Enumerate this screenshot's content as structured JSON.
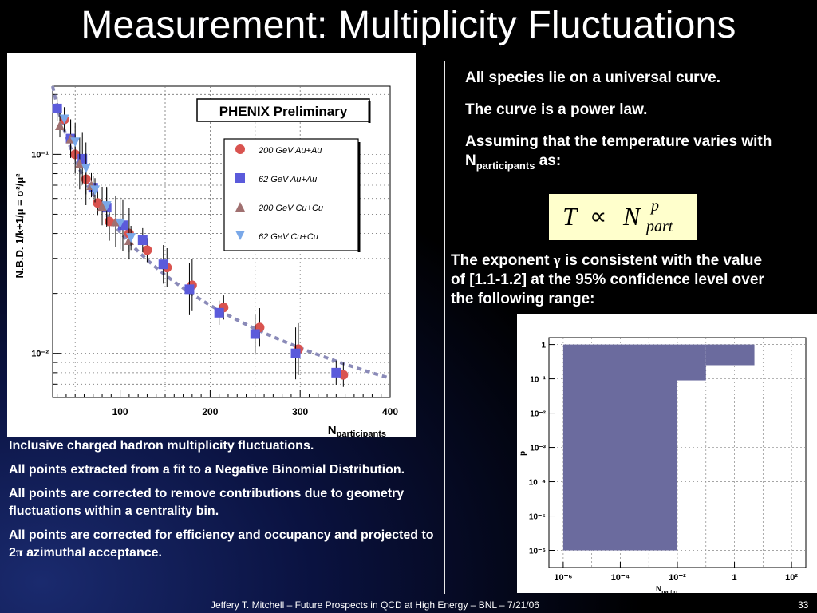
{
  "slide": {
    "title": "Measurement: Multiplicity Fluctuations",
    "right_points": [
      "All species lie on a universal curve.",
      "The curve is a power law.",
      "Assuming that the temperature varies with N",
      "participants",
      " as:"
    ],
    "exponent_text": [
      "The exponent ",
      "γ",
      " is consistent with the value of [1.1-1.2] at the 95% confidence level over the following range:"
    ],
    "left_points": [
      "Inclusive charged hadron multiplicity fluctuations.",
      "All points extracted from a fit to a Negative Binomial Distribution.",
      "All points are corrected to remove contributions due to geometry fluctuations within a centrality bin.",
      "All points are corrected for efficiency and occupancy and projected to 2",
      "π",
      " azimuthal acceptance."
    ],
    "formula": {
      "T": "T",
      "prop": "∝",
      "N": "N",
      "sup": "p",
      "sub": "part"
    },
    "footer": {
      "text": "Jeffery T. Mitchell – Future Prospects in QCD at High Energy – BNL – 7/21/06",
      "page": "33"
    }
  },
  "chart_data": [
    {
      "type": "scatter",
      "title": "PHENIX Preliminary",
      "ylabel": "N.B.D. 1/k+1/μ = σ²/μ²",
      "xlabel": "N",
      "xlabel_sub": "participants",
      "xlim": [
        25,
        400
      ],
      "ylim": [
        0.006,
        0.22
      ],
      "yscale": "log",
      "xticks": [
        "100",
        "200",
        "300",
        "400"
      ],
      "yticks": [
        "10⁻¹",
        "10⁻²"
      ],
      "grid": true,
      "legend_placement": "right",
      "series": [
        {
          "name": "200 GeV Au+Au",
          "color": "#d9534f",
          "marker": "circle",
          "x": [
            38,
            50,
            62,
            75,
            88,
            110,
            130,
            152,
            180,
            215,
            255,
            298,
            348
          ],
          "y": [
            0.15,
            0.1,
            0.075,
            0.057,
            0.046,
            0.04,
            0.033,
            0.027,
            0.022,
            0.017,
            0.0135,
            0.0105,
            0.0078
          ]
        },
        {
          "name": "62 GeV Au+Au",
          "color": "#5b5bdb",
          "marker": "square",
          "x": [
            30,
            45,
            58,
            70,
            85,
            103,
            125,
            148,
            177,
            210,
            250,
            295,
            340
          ],
          "y": [
            0.17,
            0.12,
            0.095,
            0.068,
            0.054,
            0.044,
            0.037,
            0.028,
            0.021,
            0.016,
            0.0125,
            0.01,
            0.008
          ]
        },
        {
          "name": "200 GeV Cu+Cu",
          "color": "#a07070",
          "marker": "triangle-up",
          "x": [
            33,
            45,
            55,
            68,
            80,
            95,
            110
          ],
          "y": [
            0.14,
            0.12,
            0.09,
            0.07,
            0.055,
            0.046,
            0.037
          ]
        },
        {
          "name": "62 GeV Cu+Cu",
          "color": "#7aa8e8",
          "marker": "triangle-down",
          "x": [
            38,
            50,
            62,
            72,
            85,
            100,
            112
          ],
          "y": [
            0.15,
            0.115,
            0.085,
            0.066,
            0.055,
            0.045,
            0.038
          ]
        }
      ],
      "fit": {
        "type": "power-law",
        "color": "#8a8ab8",
        "x": [
          25,
          400
        ],
        "y": [
          0.22,
          0.0075
        ]
      }
    },
    {
      "type": "area",
      "xlabel": "N",
      "xlabel_sub": "part,c",
      "ylabel": "p",
      "xscale": "log",
      "yscale": "log",
      "xticks": [
        "10⁻⁶",
        "10⁻⁴",
        "10⁻²",
        "1",
        "10²"
      ],
      "yticks": [
        "1",
        "10⁻¹",
        "10⁻²",
        "10⁻³",
        "10⁻⁴",
        "10⁻⁵",
        "10⁻⁶"
      ],
      "color": "#6b6b9e",
      "regions": [
        {
          "x": [
            1e-06,
            0.01
          ],
          "y": [
            1e-06,
            1
          ]
        },
        {
          "x": [
            0.01,
            0.1
          ],
          "y": [
            0.09,
            1
          ]
        },
        {
          "x": [
            0.1,
            5
          ],
          "y": [
            0.25,
            1
          ]
        }
      ]
    }
  ]
}
